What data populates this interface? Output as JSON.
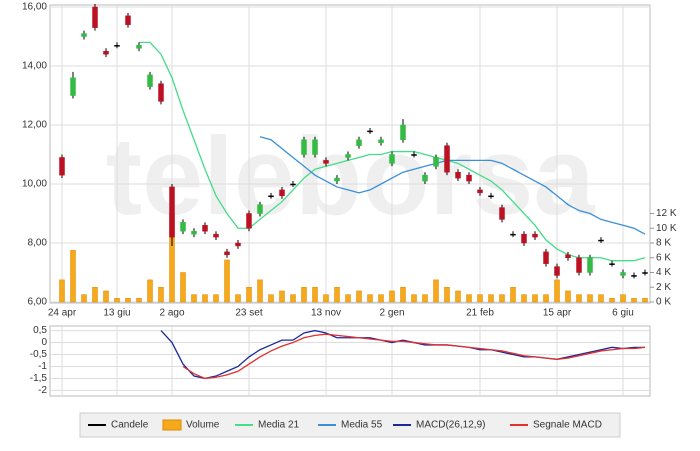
{
  "watermark": "teleborsa",
  "chart_data": [
    {
      "type": "candlestick",
      "grid": true,
      "categories": [
        "24 apr",
        null,
        null,
        null,
        null,
        "13 giu",
        null,
        null,
        null,
        null,
        "2 ago",
        null,
        null,
        null,
        null,
        null,
        null,
        "23 set",
        null,
        null,
        null,
        null,
        null,
        null,
        "13 nov",
        null,
        null,
        null,
        null,
        null,
        "2 gen",
        null,
        null,
        null,
        null,
        null,
        null,
        null,
        "21 feb",
        null,
        null,
        null,
        null,
        null,
        null,
        "15 apr",
        null,
        null,
        null,
        null,
        null,
        "6 giu",
        null,
        null
      ],
      "ylim": [
        6,
        16
      ],
      "yticks": [
        {
          "value": 6,
          "label": "6,00"
        },
        {
          "value": 8,
          "label": "8,00"
        },
        {
          "value": 10,
          "label": "10,00"
        },
        {
          "value": 12,
          "label": "12,00"
        },
        {
          "value": 14,
          "label": "14,00"
        },
        {
          "value": 16,
          "label": "16,00"
        }
      ],
      "y2lim": [
        0,
        40
      ],
      "y2ticks": [
        {
          "value": 0,
          "label": "0 K"
        },
        {
          "value": 2,
          "label": "2 K"
        },
        {
          "value": 4,
          "label": "4 K"
        },
        {
          "value": 6,
          "label": "6 K"
        },
        {
          "value": 8,
          "label": "8 K"
        },
        {
          "value": 10,
          "label": "10 K"
        },
        {
          "value": 12,
          "label": "12 K"
        }
      ],
      "series": [
        {
          "name": "Candele",
          "type": "candle",
          "color": "#000000",
          "up_color": "#33bb44",
          "down_color": "#bb1122",
          "open": [
            10.9,
            13.0,
            15.0,
            16.0,
            14.5,
            14.7,
            15.7,
            14.6,
            13.3,
            13.4,
            9.9,
            8.4,
            8.3,
            8.6,
            8.3,
            7.7,
            8.0,
            9.0,
            9.0,
            9.6,
            9.8,
            10.0,
            11.0,
            11.0,
            10.8,
            10.1,
            10.9,
            11.3,
            11.8,
            11.4,
            10.7,
            11.5,
            11.0,
            10.1,
            10.6,
            11.3,
            10.4,
            10.3,
            9.8,
            9.6,
            9.2,
            8.3,
            8.3,
            8.3,
            7.7,
            7.2,
            7.6,
            7.5,
            7.0,
            8.1,
            7.3,
            6.9,
            6.9,
            7.0
          ],
          "close": [
            10.3,
            13.6,
            15.1,
            15.3,
            14.4,
            14.7,
            15.4,
            14.7,
            13.7,
            12.8,
            8.2,
            8.7,
            8.4,
            8.4,
            8.2,
            7.6,
            7.9,
            8.5,
            9.3,
            9.6,
            9.6,
            10.0,
            11.5,
            11.5,
            10.7,
            10.2,
            11.0,
            11.5,
            11.8,
            11.5,
            11.0,
            12.0,
            11.0,
            10.3,
            10.9,
            10.4,
            10.2,
            10.1,
            9.7,
            9.6,
            8.8,
            8.3,
            8.0,
            8.2,
            7.3,
            6.9,
            7.5,
            7.0,
            7.5,
            8.1,
            7.3,
            7.0,
            6.9,
            7.0
          ],
          "high": [
            11.0,
            13.8,
            15.2,
            16.1,
            14.6,
            14.8,
            15.8,
            14.8,
            13.8,
            13.5,
            10.0,
            8.8,
            8.5,
            8.7,
            8.4,
            7.8,
            8.1,
            9.1,
            9.4,
            9.7,
            9.9,
            10.1,
            11.6,
            11.6,
            10.9,
            10.3,
            11.1,
            11.6,
            11.9,
            11.6,
            11.1,
            12.2,
            11.1,
            10.4,
            11.0,
            11.4,
            10.5,
            10.4,
            9.9,
            9.7,
            9.3,
            8.4,
            8.4,
            8.4,
            7.8,
            7.3,
            7.7,
            7.6,
            7.6,
            8.2,
            7.4,
            7.1,
            7.0,
            7.1
          ],
          "low": [
            10.2,
            12.9,
            14.9,
            15.2,
            14.3,
            14.6,
            15.3,
            14.5,
            13.2,
            12.7,
            7.9,
            8.3,
            8.2,
            8.3,
            8.1,
            7.5,
            7.8,
            8.4,
            8.9,
            9.5,
            9.5,
            9.9,
            10.9,
            10.9,
            10.6,
            10.0,
            10.8,
            11.2,
            11.7,
            11.3,
            10.6,
            11.4,
            10.9,
            10.0,
            10.5,
            10.3,
            10.1,
            10.0,
            9.6,
            9.5,
            8.7,
            8.2,
            7.9,
            8.1,
            7.2,
            6.8,
            7.4,
            6.9,
            6.9,
            8.0,
            7.2,
            6.8,
            6.8,
            6.9
          ]
        },
        {
          "name": "Volume",
          "type": "bar",
          "axis": "y2",
          "color": "#f5a91c",
          "values": [
            3,
            7,
            1,
            2,
            1.5,
            0.5,
            0.5,
            0.5,
            3,
            2,
            12,
            4,
            1,
            1,
            1,
            5.7,
            1,
            2,
            3,
            1,
            1.5,
            1,
            2,
            2,
            1,
            2,
            1,
            1.5,
            1,
            1,
            1.5,
            2,
            1,
            1,
            3,
            2,
            1.5,
            1,
            1,
            1,
            1,
            2,
            1,
            1,
            1,
            3,
            1.5,
            1,
            1,
            1,
            0.5,
            1,
            0.5,
            0.5
          ]
        },
        {
          "name": "Media 21",
          "type": "line",
          "color": "#44dd88",
          "values": [
            null,
            null,
            null,
            null,
            null,
            null,
            null,
            14.8,
            14.8,
            14.4,
            13.6,
            12.5,
            11.5,
            10.5,
            9.6,
            9.0,
            8.5,
            8.5,
            8.8,
            9.1,
            9.4,
            9.8,
            10.2,
            10.5,
            10.6,
            10.7,
            10.8,
            10.9,
            11.0,
            11.0,
            11.1,
            11.1,
            11.1,
            11.0,
            10.9,
            10.8,
            10.7,
            10.5,
            10.3,
            10.1,
            9.8,
            9.4,
            9.0,
            8.6,
            8.1,
            7.8,
            7.6,
            7.5,
            7.5,
            7.5,
            7.4,
            7.4,
            7.4,
            7.5
          ]
        },
        {
          "name": "Media 55",
          "type": "line",
          "color": "#3a8fd9",
          "values": [
            null,
            null,
            null,
            null,
            null,
            null,
            null,
            null,
            null,
            null,
            null,
            null,
            null,
            null,
            null,
            null,
            null,
            null,
            11.6,
            11.5,
            11.2,
            10.9,
            10.6,
            10.3,
            10.1,
            9.9,
            9.8,
            9.7,
            9.8,
            10.0,
            10.2,
            10.4,
            10.5,
            10.6,
            10.7,
            10.8,
            10.8,
            10.8,
            10.8,
            10.8,
            10.7,
            10.5,
            10.3,
            10.1,
            9.9,
            9.6,
            9.3,
            9.1,
            9.0,
            8.8,
            8.7,
            8.6,
            8.5,
            8.3
          ]
        }
      ]
    },
    {
      "type": "line",
      "grid": true,
      "ylim": [
        -2.15,
        0.65
      ],
      "yticks": [
        {
          "value": 0.5,
          "label": "0,5"
        },
        0,
        {
          "value": -0.5,
          "label": "-0,5"
        },
        -1,
        {
          "value": -1.5,
          "label": "-1,5"
        },
        -2
      ],
      "series": [
        {
          "name": "MACD(26,12,9)",
          "type": "line",
          "color": "#1a2a9a",
          "values": [
            null,
            null,
            null,
            null,
            null,
            null,
            null,
            null,
            null,
            0.5,
            0.0,
            -0.9,
            -1.4,
            -1.5,
            -1.4,
            -1.2,
            -1.0,
            -0.6,
            -0.3,
            -0.1,
            0.1,
            0.1,
            0.4,
            0.5,
            0.4,
            0.2,
            0.2,
            0.2,
            0.2,
            0.1,
            0.0,
            0.1,
            0.0,
            -0.1,
            -0.1,
            -0.1,
            -0.15,
            -0.2,
            -0.3,
            -0.3,
            -0.4,
            -0.5,
            -0.6,
            -0.6,
            -0.65,
            -0.7,
            -0.6,
            -0.5,
            -0.4,
            -0.3,
            -0.2,
            -0.25,
            -0.2,
            -0.2
          ]
        },
        {
          "name": "Segnale MACD",
          "type": "line",
          "color": "#e03030",
          "values": [
            null,
            null,
            null,
            null,
            null,
            null,
            null,
            null,
            null,
            null,
            null,
            -1.0,
            -1.3,
            -1.5,
            -1.45,
            -1.35,
            -1.2,
            -0.9,
            -0.6,
            -0.35,
            -0.15,
            0.0,
            0.2,
            0.3,
            0.35,
            0.3,
            0.25,
            0.2,
            0.15,
            0.1,
            0.05,
            0.05,
            0.0,
            -0.05,
            -0.1,
            -0.1,
            -0.15,
            -0.2,
            -0.25,
            -0.3,
            -0.35,
            -0.45,
            -0.55,
            -0.6,
            -0.65,
            -0.7,
            -0.65,
            -0.55,
            -0.45,
            -0.35,
            -0.3,
            -0.25,
            -0.25,
            -0.2
          ]
        }
      ]
    }
  ]
}
